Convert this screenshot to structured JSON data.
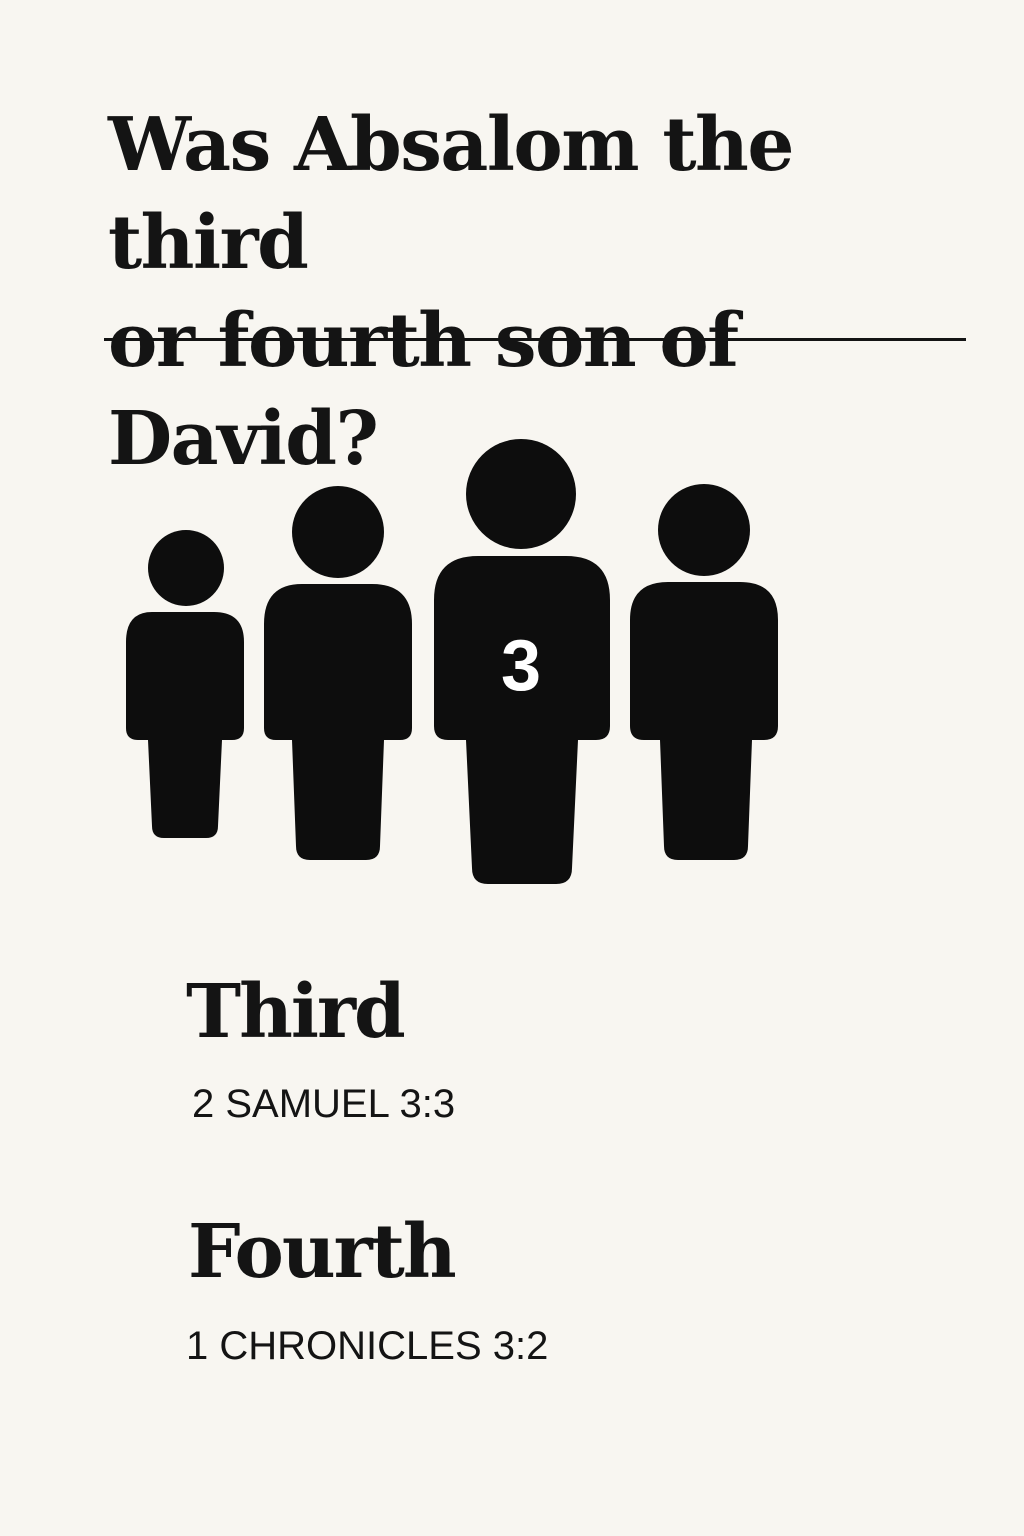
{
  "question": {
    "line1": "Was Absalom the third",
    "line2": "or fourth son of David?"
  },
  "figures": {
    "icon": "person-icon",
    "count": 4,
    "highlight_number": "3",
    "color": "#0d0d0d",
    "number_color": "#ffffff"
  },
  "answers": [
    {
      "label": "Third",
      "reference": "2 SAMUEL 3:3"
    },
    {
      "label": "Fourth",
      "reference": "1 CHRONICLES 3:2"
    }
  ],
  "colors": {
    "background": "#f8f6f1",
    "text": "#141414"
  }
}
